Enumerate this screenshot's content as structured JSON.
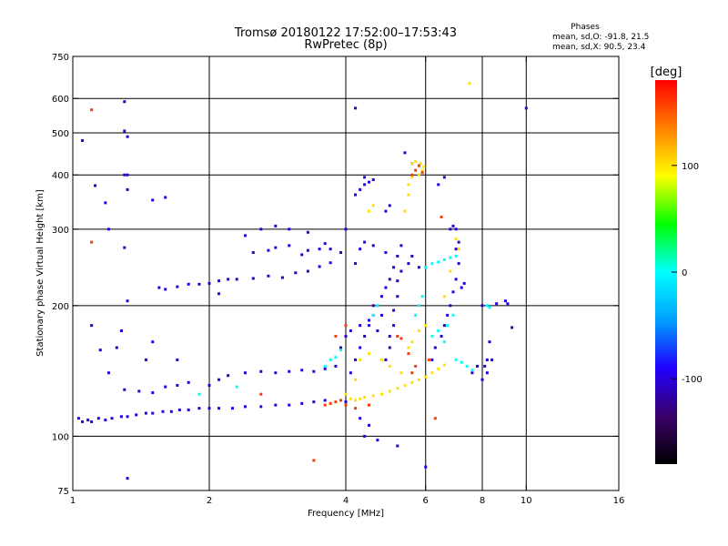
{
  "chart_data": {
    "type": "scatter",
    "title": "Tromsø 20180122 17:52:00–17:53:43",
    "subtitle": "RwPretec (8p)",
    "xlabel": "Frequency [MHz]",
    "ylabel": "Stationary phase Virtual Height [km]",
    "x_scale": "log",
    "y_scale": "log",
    "xlim": [
      1,
      16
    ],
    "ylim": [
      75,
      750
    ],
    "grid": true,
    "x_ticks": [
      {
        "value": 1,
        "label": "1"
      },
      {
        "value": 2,
        "label": "2"
      },
      {
        "value": 4,
        "label": "4"
      },
      {
        "value": 6,
        "label": "6"
      },
      {
        "value": 8,
        "label": "8"
      },
      {
        "value": 10,
        "label": "10"
      },
      {
        "value": 16,
        "label": "16"
      }
    ],
    "x_grid": [
      2,
      4,
      6,
      8,
      10
    ],
    "y_ticks": [
      {
        "value": 75,
        "label": "75"
      },
      {
        "value": 100,
        "label": "100"
      },
      {
        "value": 200,
        "label": "200"
      },
      {
        "value": 300,
        "label": "300"
      },
      {
        "value": 400,
        "label": "400"
      },
      {
        "value": 500,
        "label": "500"
      },
      {
        "value": 600,
        "label": "600"
      },
      {
        "value": 750,
        "label": "750"
      }
    ],
    "y_grid": [
      100,
      200,
      300,
      400,
      500,
      600
    ],
    "phases_box": {
      "title": "Phases",
      "line_o": "mean, sd,O: -91.8, 21.5",
      "line_x": "mean, sd,X:  90.5, 23.4"
    },
    "colorbar": {
      "label": "[deg]",
      "range": [
        -180,
        180
      ],
      "ticks": [
        {
          "value": 100,
          "label": "100"
        },
        {
          "value": 0,
          "label": "0"
        },
        {
          "value": -100,
          "label": "-100"
        }
      ],
      "colors": [
        "#000000",
        "#3a006a",
        "#2000ff",
        "#00a0ff",
        "#00ffff",
        "#00ff00",
        "#ffff00",
        "#ff8000",
        "#ff0000"
      ]
    },
    "series": [
      {
        "phase": -100,
        "points": [
          [
            1.03,
            110
          ],
          [
            1.05,
            108
          ],
          [
            1.08,
            109
          ],
          [
            1.1,
            108
          ],
          [
            1.14,
            110
          ],
          [
            1.18,
            109
          ],
          [
            1.22,
            110
          ],
          [
            1.28,
            111
          ],
          [
            1.32,
            111
          ],
          [
            1.38,
            112
          ],
          [
            1.45,
            113
          ],
          [
            1.5,
            113
          ],
          [
            1.58,
            114
          ],
          [
            1.65,
            114
          ],
          [
            1.72,
            115
          ],
          [
            1.8,
            115
          ],
          [
            1.9,
            116
          ],
          [
            2.0,
            116
          ],
          [
            2.1,
            116
          ],
          [
            2.25,
            116
          ],
          [
            2.4,
            117
          ],
          [
            2.6,
            117
          ],
          [
            2.8,
            118
          ],
          [
            3.0,
            118
          ],
          [
            3.2,
            119
          ],
          [
            3.4,
            120
          ],
          [
            3.6,
            121
          ],
          [
            1.3,
            128
          ],
          [
            1.4,
            127
          ],
          [
            1.5,
            126
          ],
          [
            1.6,
            130
          ],
          [
            1.7,
            131
          ],
          [
            1.8,
            133
          ],
          [
            2.0,
            131
          ],
          [
            2.1,
            135
          ],
          [
            2.2,
            138
          ],
          [
            2.4,
            140
          ],
          [
            2.6,
            141
          ],
          [
            2.8,
            140
          ],
          [
            3.0,
            141
          ],
          [
            3.2,
            142
          ],
          [
            3.4,
            141
          ],
          [
            3.6,
            143
          ],
          [
            3.8,
            145
          ],
          [
            1.55,
            220
          ],
          [
            1.6,
            218
          ],
          [
            1.7,
            221
          ],
          [
            1.8,
            224
          ],
          [
            1.9,
            224
          ],
          [
            2.1,
            228
          ],
          [
            2.3,
            230
          ],
          [
            2.5,
            231
          ],
          [
            2.7,
            234
          ],
          [
            2.9,
            232
          ],
          [
            3.1,
            238
          ],
          [
            3.3,
            240
          ],
          [
            3.5,
            246
          ],
          [
            3.7,
            251
          ],
          [
            2.5,
            265
          ],
          [
            2.7,
            268
          ],
          [
            2.8,
            272
          ],
          [
            3.0,
            275
          ],
          [
            3.2,
            262
          ],
          [
            3.3,
            268
          ],
          [
            3.5,
            270
          ],
          [
            3.6,
            278
          ],
          [
            4.0,
            120
          ],
          [
            4.1,
            140
          ],
          [
            4.2,
            150
          ],
          [
            4.3,
            160
          ],
          [
            4.4,
            170
          ],
          [
            4.5,
            180
          ],
          [
            4.6,
            190
          ],
          [
            4.7,
            200
          ],
          [
            4.8,
            210
          ],
          [
            4.9,
            220
          ],
          [
            5.0,
            230
          ],
          [
            5.1,
            245
          ],
          [
            5.2,
            260
          ],
          [
            5.3,
            275
          ],
          [
            4.9,
            150
          ],
          [
            5.0,
            160
          ],
          [
            5.0,
            170
          ],
          [
            5.1,
            180
          ],
          [
            5.1,
            195
          ],
          [
            5.2,
            210
          ],
          [
            5.2,
            228
          ],
          [
            5.3,
            240
          ],
          [
            6.2,
            150
          ],
          [
            6.3,
            160
          ],
          [
            6.5,
            170
          ],
          [
            6.6,
            180
          ],
          [
            6.7,
            190
          ],
          [
            6.8,
            200
          ],
          [
            6.9,
            215
          ],
          [
            7.0,
            230
          ],
          [
            7.1,
            250
          ],
          [
            7.0,
            270
          ],
          [
            7.2,
            220
          ],
          [
            7.3,
            225
          ],
          [
            7.6,
            140
          ],
          [
            7.8,
            145
          ],
          [
            8.0,
            135
          ],
          [
            8.1,
            145
          ],
          [
            8.2,
            150
          ],
          [
            8.3,
            165
          ],
          [
            8.0,
            200
          ],
          [
            8.6,
            202
          ],
          [
            9.1,
            202
          ],
          [
            4.3,
            370
          ],
          [
            4.4,
            380
          ],
          [
            4.5,
            385
          ],
          [
            4.6,
            390
          ],
          [
            4.4,
            395
          ],
          [
            4.2,
            360
          ],
          [
            4.0,
            300
          ],
          [
            4.3,
            270
          ],
          [
            4.6,
            275
          ],
          [
            4.9,
            265
          ],
          [
            1.3,
            590
          ],
          [
            1.3,
            505
          ],
          [
            1.32,
            490
          ],
          [
            1.32,
            400
          ],
          [
            1.32,
            370
          ],
          [
            1.3,
            272
          ],
          [
            1.32,
            205
          ],
          [
            1.28,
            175
          ],
          [
            1.05,
            480
          ],
          [
            1.12,
            378
          ],
          [
            1.18,
            345
          ],
          [
            1.3,
            400
          ],
          [
            1.5,
            350
          ],
          [
            1.6,
            355
          ],
          [
            1.1,
            180
          ],
          [
            1.2,
            300
          ],
          [
            4.2,
            570
          ],
          [
            10.0,
            570
          ],
          [
            4.3,
            110
          ],
          [
            4.4,
            100
          ],
          [
            4.5,
            106
          ],
          [
            4.7,
            98
          ],
          [
            5.2,
            95
          ],
          [
            6.0,
            85
          ],
          [
            1.32,
            80
          ],
          [
            1.15,
            158
          ],
          [
            1.2,
            140
          ],
          [
            1.25,
            160
          ],
          [
            1.45,
            150
          ],
          [
            1.7,
            150
          ],
          [
            1.5,
            165
          ],
          [
            3.9,
            160
          ],
          [
            4.0,
            170
          ],
          [
            4.1,
            175
          ],
          [
            4.3,
            180
          ],
          [
            4.5,
            185
          ],
          [
            4.6,
            200
          ],
          [
            4.7,
            175
          ],
          [
            4.8,
            190
          ],
          [
            4.9,
            330
          ],
          [
            5.0,
            340
          ],
          [
            5.5,
            250
          ],
          [
            5.6,
            260
          ],
          [
            5.8,
            245
          ],
          [
            6.8,
            300
          ],
          [
            6.9,
            305
          ],
          [
            7.0,
            300
          ],
          [
            7.1,
            280
          ],
          [
            6.4,
            380
          ],
          [
            6.6,
            395
          ],
          [
            5.4,
            450
          ],
          [
            5.6,
            425
          ],
          [
            4.4,
            280
          ],
          [
            4.2,
            250
          ],
          [
            3.9,
            265
          ],
          [
            3.7,
            270
          ],
          [
            2.1,
            213
          ],
          [
            2.0,
            225
          ],
          [
            2.2,
            230
          ],
          [
            2.4,
            290
          ],
          [
            2.6,
            300
          ],
          [
            2.8,
            305
          ],
          [
            3.0,
            300
          ],
          [
            3.3,
            295
          ],
          [
            8.2,
            140
          ],
          [
            8.4,
            150
          ],
          [
            9.3,
            178
          ],
          [
            9.0,
            205
          ]
        ]
      },
      {
        "phase": 0,
        "points": [
          [
            3.6,
            145
          ],
          [
            3.7,
            150
          ],
          [
            3.8,
            152
          ],
          [
            3.9,
            158
          ],
          [
            6.0,
            245
          ],
          [
            6.2,
            250
          ],
          [
            6.4,
            252
          ],
          [
            6.6,
            255
          ],
          [
            6.8,
            258
          ],
          [
            7.0,
            260
          ],
          [
            5.7,
            190
          ],
          [
            5.8,
            200
          ],
          [
            5.9,
            210
          ],
          [
            6.2,
            170
          ],
          [
            6.4,
            175
          ],
          [
            6.6,
            165
          ],
          [
            6.7,
            180
          ],
          [
            6.9,
            190
          ],
          [
            7.0,
            150
          ],
          [
            7.2,
            148
          ],
          [
            7.4,
            145
          ],
          [
            7.6,
            142
          ],
          [
            8.2,
            200
          ],
          [
            8.3,
            198
          ],
          [
            4.6,
            190
          ],
          [
            4.7,
            200
          ],
          [
            2.3,
            130
          ],
          [
            1.9,
            125
          ]
        ]
      },
      {
        "phase": 100,
        "points": [
          [
            4.0,
            125
          ],
          [
            4.1,
            122
          ],
          [
            4.2,
            121
          ],
          [
            4.3,
            122
          ],
          [
            4.4,
            123
          ],
          [
            4.6,
            124
          ],
          [
            4.8,
            125
          ],
          [
            5.0,
            127
          ],
          [
            5.2,
            129
          ],
          [
            5.4,
            131
          ],
          [
            5.6,
            133
          ],
          [
            5.8,
            135
          ],
          [
            6.0,
            137
          ],
          [
            6.2,
            140
          ],
          [
            6.4,
            143
          ],
          [
            6.6,
            146
          ],
          [
            5.5,
            160
          ],
          [
            5.6,
            165
          ],
          [
            5.8,
            175
          ],
          [
            6.0,
            180
          ],
          [
            5.4,
            330
          ],
          [
            5.5,
            360
          ],
          [
            5.5,
            380
          ],
          [
            5.6,
            395
          ],
          [
            5.8,
            400
          ],
          [
            5.9,
            410
          ],
          [
            5.95,
            418
          ],
          [
            5.85,
            425
          ],
          [
            5.7,
            430
          ],
          [
            5.6,
            425
          ],
          [
            7.0,
            285
          ],
          [
            7.1,
            270
          ],
          [
            6.8,
            240
          ],
          [
            6.6,
            210
          ],
          [
            7.5,
            650
          ],
          [
            4.2,
            135
          ],
          [
            4.3,
            150
          ],
          [
            4.5,
            155
          ],
          [
            4.8,
            150
          ],
          [
            5.0,
            145
          ],
          [
            5.3,
            140
          ],
          [
            4.5,
            330
          ],
          [
            4.6,
            340
          ]
        ]
      },
      {
        "phase": 160,
        "points": [
          [
            3.6,
            118
          ],
          [
            3.7,
            119
          ],
          [
            3.8,
            120
          ],
          [
            3.9,
            121
          ],
          [
            4.0,
            118
          ],
          [
            4.2,
            116
          ],
          [
            4.5,
            118
          ],
          [
            5.6,
            140
          ],
          [
            5.7,
            145
          ],
          [
            5.2,
            170
          ],
          [
            5.3,
            168
          ],
          [
            5.5,
            155
          ],
          [
            6.1,
            150
          ],
          [
            2.6,
            125
          ],
          [
            1.1,
            565
          ],
          [
            3.4,
            88
          ],
          [
            3.8,
            170
          ],
          [
            4.0,
            180
          ],
          [
            5.8,
            420
          ],
          [
            5.7,
            410
          ],
          [
            5.6,
            400
          ],
          [
            5.9,
            405
          ],
          [
            6.5,
            320
          ],
          [
            6.3,
            110
          ],
          [
            1.1,
            280
          ]
        ]
      }
    ]
  }
}
